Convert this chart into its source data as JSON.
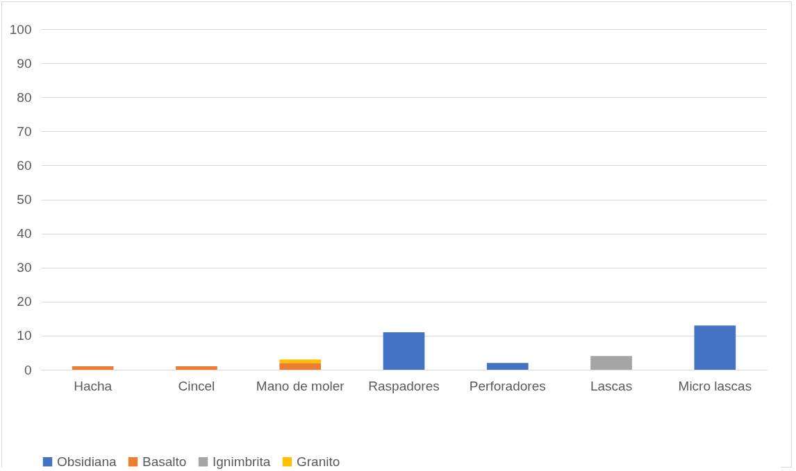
{
  "chart_data": {
    "type": "bar",
    "stacked": true,
    "categories": [
      "Hacha",
      "Cincel",
      "Mano de moler",
      "Raspadores",
      "Perforadores",
      "Lascas",
      "Micro lascas"
    ],
    "series": [
      {
        "name": "Obsidiana",
        "color": "#4472c4",
        "values": [
          0,
          0,
          0,
          11,
          2,
          0,
          13
        ]
      },
      {
        "name": "Basalto",
        "color": "#ed7d31",
        "values": [
          1,
          1,
          2,
          0,
          0,
          0,
          0
        ]
      },
      {
        "name": "Ignimbrita",
        "color": "#a5a5a5",
        "values": [
          0,
          0,
          0,
          0,
          0,
          4,
          0
        ]
      },
      {
        "name": "Granito",
        "color": "#ffc000",
        "values": [
          0,
          0,
          1,
          0,
          0,
          0,
          0
        ]
      }
    ],
    "ylim": [
      0,
      100
    ],
    "yticks": [
      0,
      10,
      20,
      30,
      40,
      50,
      60,
      70,
      80,
      90,
      100
    ],
    "grid": "y",
    "legend": "bottom"
  }
}
